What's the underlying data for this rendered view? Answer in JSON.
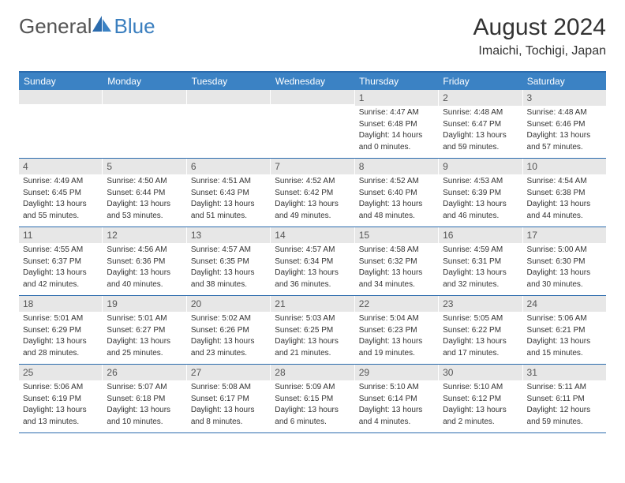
{
  "logo": {
    "part1": "General",
    "part2": "Blue"
  },
  "header": {
    "title": "August 2024",
    "location": "Imaichi, Tochigi, Japan"
  },
  "style": {
    "header_bg": "#3b82c4",
    "header_text": "#ffffff",
    "border_color": "#2b6bad",
    "daynum_bg": "#e7e7e7",
    "body_font_size": 10,
    "title_font_size": 30,
    "location_font_size": 16,
    "weekday_font_size": 12
  },
  "weekdays": [
    "Sunday",
    "Monday",
    "Tuesday",
    "Wednesday",
    "Thursday",
    "Friday",
    "Saturday"
  ],
  "weeks": [
    [
      {
        "empty": true
      },
      {
        "empty": true
      },
      {
        "empty": true
      },
      {
        "empty": true
      },
      {
        "day": "1",
        "sunrise": "Sunrise: 4:47 AM",
        "sunset": "Sunset: 6:48 PM",
        "dl1": "Daylight: 14 hours",
        "dl2": "and 0 minutes."
      },
      {
        "day": "2",
        "sunrise": "Sunrise: 4:48 AM",
        "sunset": "Sunset: 6:47 PM",
        "dl1": "Daylight: 13 hours",
        "dl2": "and 59 minutes."
      },
      {
        "day": "3",
        "sunrise": "Sunrise: 4:48 AM",
        "sunset": "Sunset: 6:46 PM",
        "dl1": "Daylight: 13 hours",
        "dl2": "and 57 minutes."
      }
    ],
    [
      {
        "day": "4",
        "sunrise": "Sunrise: 4:49 AM",
        "sunset": "Sunset: 6:45 PM",
        "dl1": "Daylight: 13 hours",
        "dl2": "and 55 minutes."
      },
      {
        "day": "5",
        "sunrise": "Sunrise: 4:50 AM",
        "sunset": "Sunset: 6:44 PM",
        "dl1": "Daylight: 13 hours",
        "dl2": "and 53 minutes."
      },
      {
        "day": "6",
        "sunrise": "Sunrise: 4:51 AM",
        "sunset": "Sunset: 6:43 PM",
        "dl1": "Daylight: 13 hours",
        "dl2": "and 51 minutes."
      },
      {
        "day": "7",
        "sunrise": "Sunrise: 4:52 AM",
        "sunset": "Sunset: 6:42 PM",
        "dl1": "Daylight: 13 hours",
        "dl2": "and 49 minutes."
      },
      {
        "day": "8",
        "sunrise": "Sunrise: 4:52 AM",
        "sunset": "Sunset: 6:40 PM",
        "dl1": "Daylight: 13 hours",
        "dl2": "and 48 minutes."
      },
      {
        "day": "9",
        "sunrise": "Sunrise: 4:53 AM",
        "sunset": "Sunset: 6:39 PM",
        "dl1": "Daylight: 13 hours",
        "dl2": "and 46 minutes."
      },
      {
        "day": "10",
        "sunrise": "Sunrise: 4:54 AM",
        "sunset": "Sunset: 6:38 PM",
        "dl1": "Daylight: 13 hours",
        "dl2": "and 44 minutes."
      }
    ],
    [
      {
        "day": "11",
        "sunrise": "Sunrise: 4:55 AM",
        "sunset": "Sunset: 6:37 PM",
        "dl1": "Daylight: 13 hours",
        "dl2": "and 42 minutes."
      },
      {
        "day": "12",
        "sunrise": "Sunrise: 4:56 AM",
        "sunset": "Sunset: 6:36 PM",
        "dl1": "Daylight: 13 hours",
        "dl2": "and 40 minutes."
      },
      {
        "day": "13",
        "sunrise": "Sunrise: 4:57 AM",
        "sunset": "Sunset: 6:35 PM",
        "dl1": "Daylight: 13 hours",
        "dl2": "and 38 minutes."
      },
      {
        "day": "14",
        "sunrise": "Sunrise: 4:57 AM",
        "sunset": "Sunset: 6:34 PM",
        "dl1": "Daylight: 13 hours",
        "dl2": "and 36 minutes."
      },
      {
        "day": "15",
        "sunrise": "Sunrise: 4:58 AM",
        "sunset": "Sunset: 6:32 PM",
        "dl1": "Daylight: 13 hours",
        "dl2": "and 34 minutes."
      },
      {
        "day": "16",
        "sunrise": "Sunrise: 4:59 AM",
        "sunset": "Sunset: 6:31 PM",
        "dl1": "Daylight: 13 hours",
        "dl2": "and 32 minutes."
      },
      {
        "day": "17",
        "sunrise": "Sunrise: 5:00 AM",
        "sunset": "Sunset: 6:30 PM",
        "dl1": "Daylight: 13 hours",
        "dl2": "and 30 minutes."
      }
    ],
    [
      {
        "day": "18",
        "sunrise": "Sunrise: 5:01 AM",
        "sunset": "Sunset: 6:29 PM",
        "dl1": "Daylight: 13 hours",
        "dl2": "and 28 minutes."
      },
      {
        "day": "19",
        "sunrise": "Sunrise: 5:01 AM",
        "sunset": "Sunset: 6:27 PM",
        "dl1": "Daylight: 13 hours",
        "dl2": "and 25 minutes."
      },
      {
        "day": "20",
        "sunrise": "Sunrise: 5:02 AM",
        "sunset": "Sunset: 6:26 PM",
        "dl1": "Daylight: 13 hours",
        "dl2": "and 23 minutes."
      },
      {
        "day": "21",
        "sunrise": "Sunrise: 5:03 AM",
        "sunset": "Sunset: 6:25 PM",
        "dl1": "Daylight: 13 hours",
        "dl2": "and 21 minutes."
      },
      {
        "day": "22",
        "sunrise": "Sunrise: 5:04 AM",
        "sunset": "Sunset: 6:23 PM",
        "dl1": "Daylight: 13 hours",
        "dl2": "and 19 minutes."
      },
      {
        "day": "23",
        "sunrise": "Sunrise: 5:05 AM",
        "sunset": "Sunset: 6:22 PM",
        "dl1": "Daylight: 13 hours",
        "dl2": "and 17 minutes."
      },
      {
        "day": "24",
        "sunrise": "Sunrise: 5:06 AM",
        "sunset": "Sunset: 6:21 PM",
        "dl1": "Daylight: 13 hours",
        "dl2": "and 15 minutes."
      }
    ],
    [
      {
        "day": "25",
        "sunrise": "Sunrise: 5:06 AM",
        "sunset": "Sunset: 6:19 PM",
        "dl1": "Daylight: 13 hours",
        "dl2": "and 13 minutes."
      },
      {
        "day": "26",
        "sunrise": "Sunrise: 5:07 AM",
        "sunset": "Sunset: 6:18 PM",
        "dl1": "Daylight: 13 hours",
        "dl2": "and 10 minutes."
      },
      {
        "day": "27",
        "sunrise": "Sunrise: 5:08 AM",
        "sunset": "Sunset: 6:17 PM",
        "dl1": "Daylight: 13 hours",
        "dl2": "and 8 minutes."
      },
      {
        "day": "28",
        "sunrise": "Sunrise: 5:09 AM",
        "sunset": "Sunset: 6:15 PM",
        "dl1": "Daylight: 13 hours",
        "dl2": "and 6 minutes."
      },
      {
        "day": "29",
        "sunrise": "Sunrise: 5:10 AM",
        "sunset": "Sunset: 6:14 PM",
        "dl1": "Daylight: 13 hours",
        "dl2": "and 4 minutes."
      },
      {
        "day": "30",
        "sunrise": "Sunrise: 5:10 AM",
        "sunset": "Sunset: 6:12 PM",
        "dl1": "Daylight: 13 hours",
        "dl2": "and 2 minutes."
      },
      {
        "day": "31",
        "sunrise": "Sunrise: 5:11 AM",
        "sunset": "Sunset: 6:11 PM",
        "dl1": "Daylight: 12 hours",
        "dl2": "and 59 minutes."
      }
    ]
  ]
}
